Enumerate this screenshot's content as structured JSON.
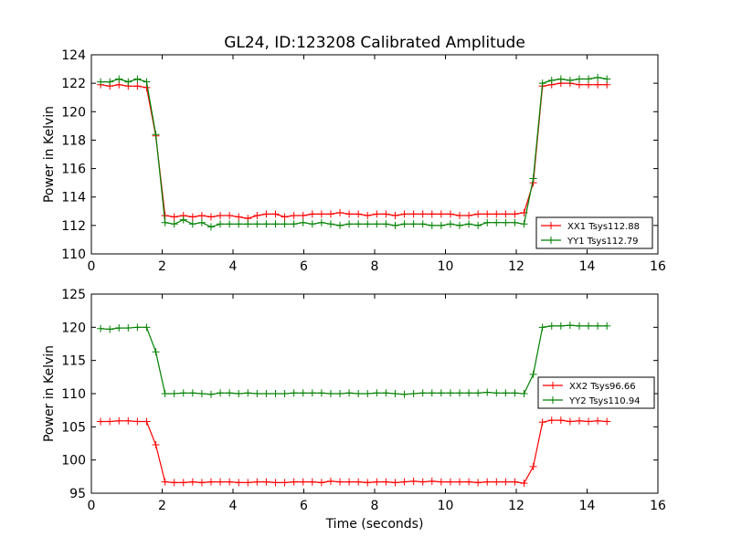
{
  "figure": {
    "title": "GL24, ID:123208 Calibrated Amplitude",
    "xlabel": "Time (seconds)"
  },
  "colors": {
    "xx": "#ff0000",
    "yy": "#008000"
  },
  "chart_data": [
    {
      "type": "line",
      "ylabel": "Power in Kelvin",
      "xlim": [
        0,
        16
      ],
      "ylim": [
        110,
        124
      ],
      "xticks": [
        0,
        2,
        4,
        6,
        8,
        10,
        12,
        14,
        16
      ],
      "yticks": [
        110,
        112,
        114,
        116,
        118,
        120,
        122,
        124
      ],
      "legend_position": "lower-right",
      "x": [
        0.26,
        0.52,
        0.78,
        1.04,
        1.3,
        1.56,
        1.82,
        2.08,
        2.34,
        2.6,
        2.86,
        3.12,
        3.38,
        3.64,
        3.9,
        4.16,
        4.42,
        4.68,
        4.94,
        5.2,
        5.46,
        5.72,
        5.98,
        6.24,
        6.5,
        6.76,
        7.02,
        7.28,
        7.54,
        7.8,
        8.06,
        8.32,
        8.58,
        8.84,
        9.1,
        9.36,
        9.62,
        9.88,
        10.14,
        10.4,
        10.66,
        10.92,
        11.18,
        11.44,
        11.7,
        11.96,
        12.22,
        12.48,
        12.74,
        13.0,
        13.26,
        13.52,
        13.78,
        14.04,
        14.3,
        14.56
      ],
      "series": [
        {
          "name": "XX1 Tsys112.88",
          "color": "#ff0000",
          "values": [
            121.9,
            121.8,
            121.9,
            121.8,
            121.8,
            121.7,
            118.3,
            112.7,
            112.6,
            112.7,
            112.6,
            112.7,
            112.6,
            112.7,
            112.7,
            112.6,
            112.5,
            112.7,
            112.8,
            112.8,
            112.6,
            112.7,
            112.7,
            112.8,
            112.8,
            112.8,
            112.9,
            112.8,
            112.8,
            112.7,
            112.8,
            112.8,
            112.7,
            112.8,
            112.8,
            112.8,
            112.8,
            112.8,
            112.8,
            112.7,
            112.7,
            112.8,
            112.8,
            112.8,
            112.8,
            112.8,
            112.9,
            115.0,
            121.8,
            121.9,
            122.0,
            122.0,
            121.9,
            121.9,
            121.9,
            121.9
          ]
        },
        {
          "name": "YY1 Tsys112.79",
          "color": "#008000",
          "values": [
            122.1,
            122.1,
            122.3,
            122.1,
            122.3,
            122.1,
            118.4,
            112.2,
            112.1,
            112.4,
            112.1,
            112.2,
            111.9,
            112.1,
            112.1,
            112.1,
            112.1,
            112.1,
            112.1,
            112.1,
            112.1,
            112.1,
            112.2,
            112.1,
            112.2,
            112.1,
            112.0,
            112.1,
            112.1,
            112.1,
            112.1,
            112.1,
            112.0,
            112.1,
            112.1,
            112.1,
            112.0,
            112.0,
            112.1,
            112.0,
            112.1,
            112.0,
            112.2,
            112.2,
            112.2,
            112.2,
            112.1,
            115.3,
            122.0,
            122.2,
            122.3,
            122.2,
            122.3,
            122.3,
            122.4,
            122.3
          ]
        }
      ]
    },
    {
      "type": "line",
      "ylabel": "Power in Kelvin",
      "xlabel": "Time (seconds)",
      "xlim": [
        0,
        16
      ],
      "ylim": [
        95,
        125
      ],
      "xticks": [
        0,
        2,
        4,
        6,
        8,
        10,
        12,
        14,
        16
      ],
      "yticks": [
        95,
        100,
        105,
        110,
        115,
        120,
        125
      ],
      "legend_position": "right",
      "x": [
        0.26,
        0.52,
        0.78,
        1.04,
        1.3,
        1.56,
        1.82,
        2.08,
        2.34,
        2.6,
        2.86,
        3.12,
        3.38,
        3.64,
        3.9,
        4.16,
        4.42,
        4.68,
        4.94,
        5.2,
        5.46,
        5.72,
        5.98,
        6.24,
        6.5,
        6.76,
        7.02,
        7.28,
        7.54,
        7.8,
        8.06,
        8.32,
        8.58,
        8.84,
        9.1,
        9.36,
        9.62,
        9.88,
        10.14,
        10.4,
        10.66,
        10.92,
        11.18,
        11.44,
        11.7,
        11.96,
        12.22,
        12.48,
        12.74,
        13.0,
        13.26,
        13.52,
        13.78,
        14.04,
        14.3,
        14.56
      ],
      "series": [
        {
          "name": "XX2 Tsys96.66",
          "color": "#ff0000",
          "values": [
            105.8,
            105.8,
            105.9,
            105.9,
            105.8,
            105.8,
            102.3,
            96.7,
            96.6,
            96.6,
            96.7,
            96.6,
            96.7,
            96.7,
            96.7,
            96.6,
            96.6,
            96.7,
            96.7,
            96.6,
            96.6,
            96.7,
            96.7,
            96.7,
            96.6,
            96.8,
            96.7,
            96.7,
            96.7,
            96.6,
            96.7,
            96.7,
            96.6,
            96.7,
            96.8,
            96.7,
            96.8,
            96.7,
            96.7,
            96.7,
            96.7,
            96.6,
            96.7,
            96.7,
            96.7,
            96.7,
            96.5,
            99.0,
            105.7,
            106.0,
            106.0,
            105.8,
            105.9,
            105.8,
            105.9,
            105.8
          ]
        },
        {
          "name": "YY2 Tsys110.94",
          "color": "#008000",
          "values": [
            119.8,
            119.7,
            119.9,
            119.9,
            120.0,
            120.0,
            116.3,
            110.0,
            110.0,
            110.1,
            110.1,
            110.0,
            109.9,
            110.1,
            110.1,
            110.0,
            110.1,
            110.0,
            110.0,
            110.0,
            110.0,
            110.1,
            110.1,
            110.1,
            110.1,
            110.0,
            110.0,
            110.1,
            110.0,
            110.0,
            110.1,
            110.1,
            110.0,
            109.9,
            110.0,
            110.1,
            110.1,
            110.1,
            110.1,
            110.1,
            110.1,
            110.1,
            110.2,
            110.1,
            110.1,
            110.1,
            110.0,
            112.9,
            120.0,
            120.2,
            120.2,
            120.3,
            120.2,
            120.2,
            120.2,
            120.2
          ]
        }
      ]
    }
  ]
}
